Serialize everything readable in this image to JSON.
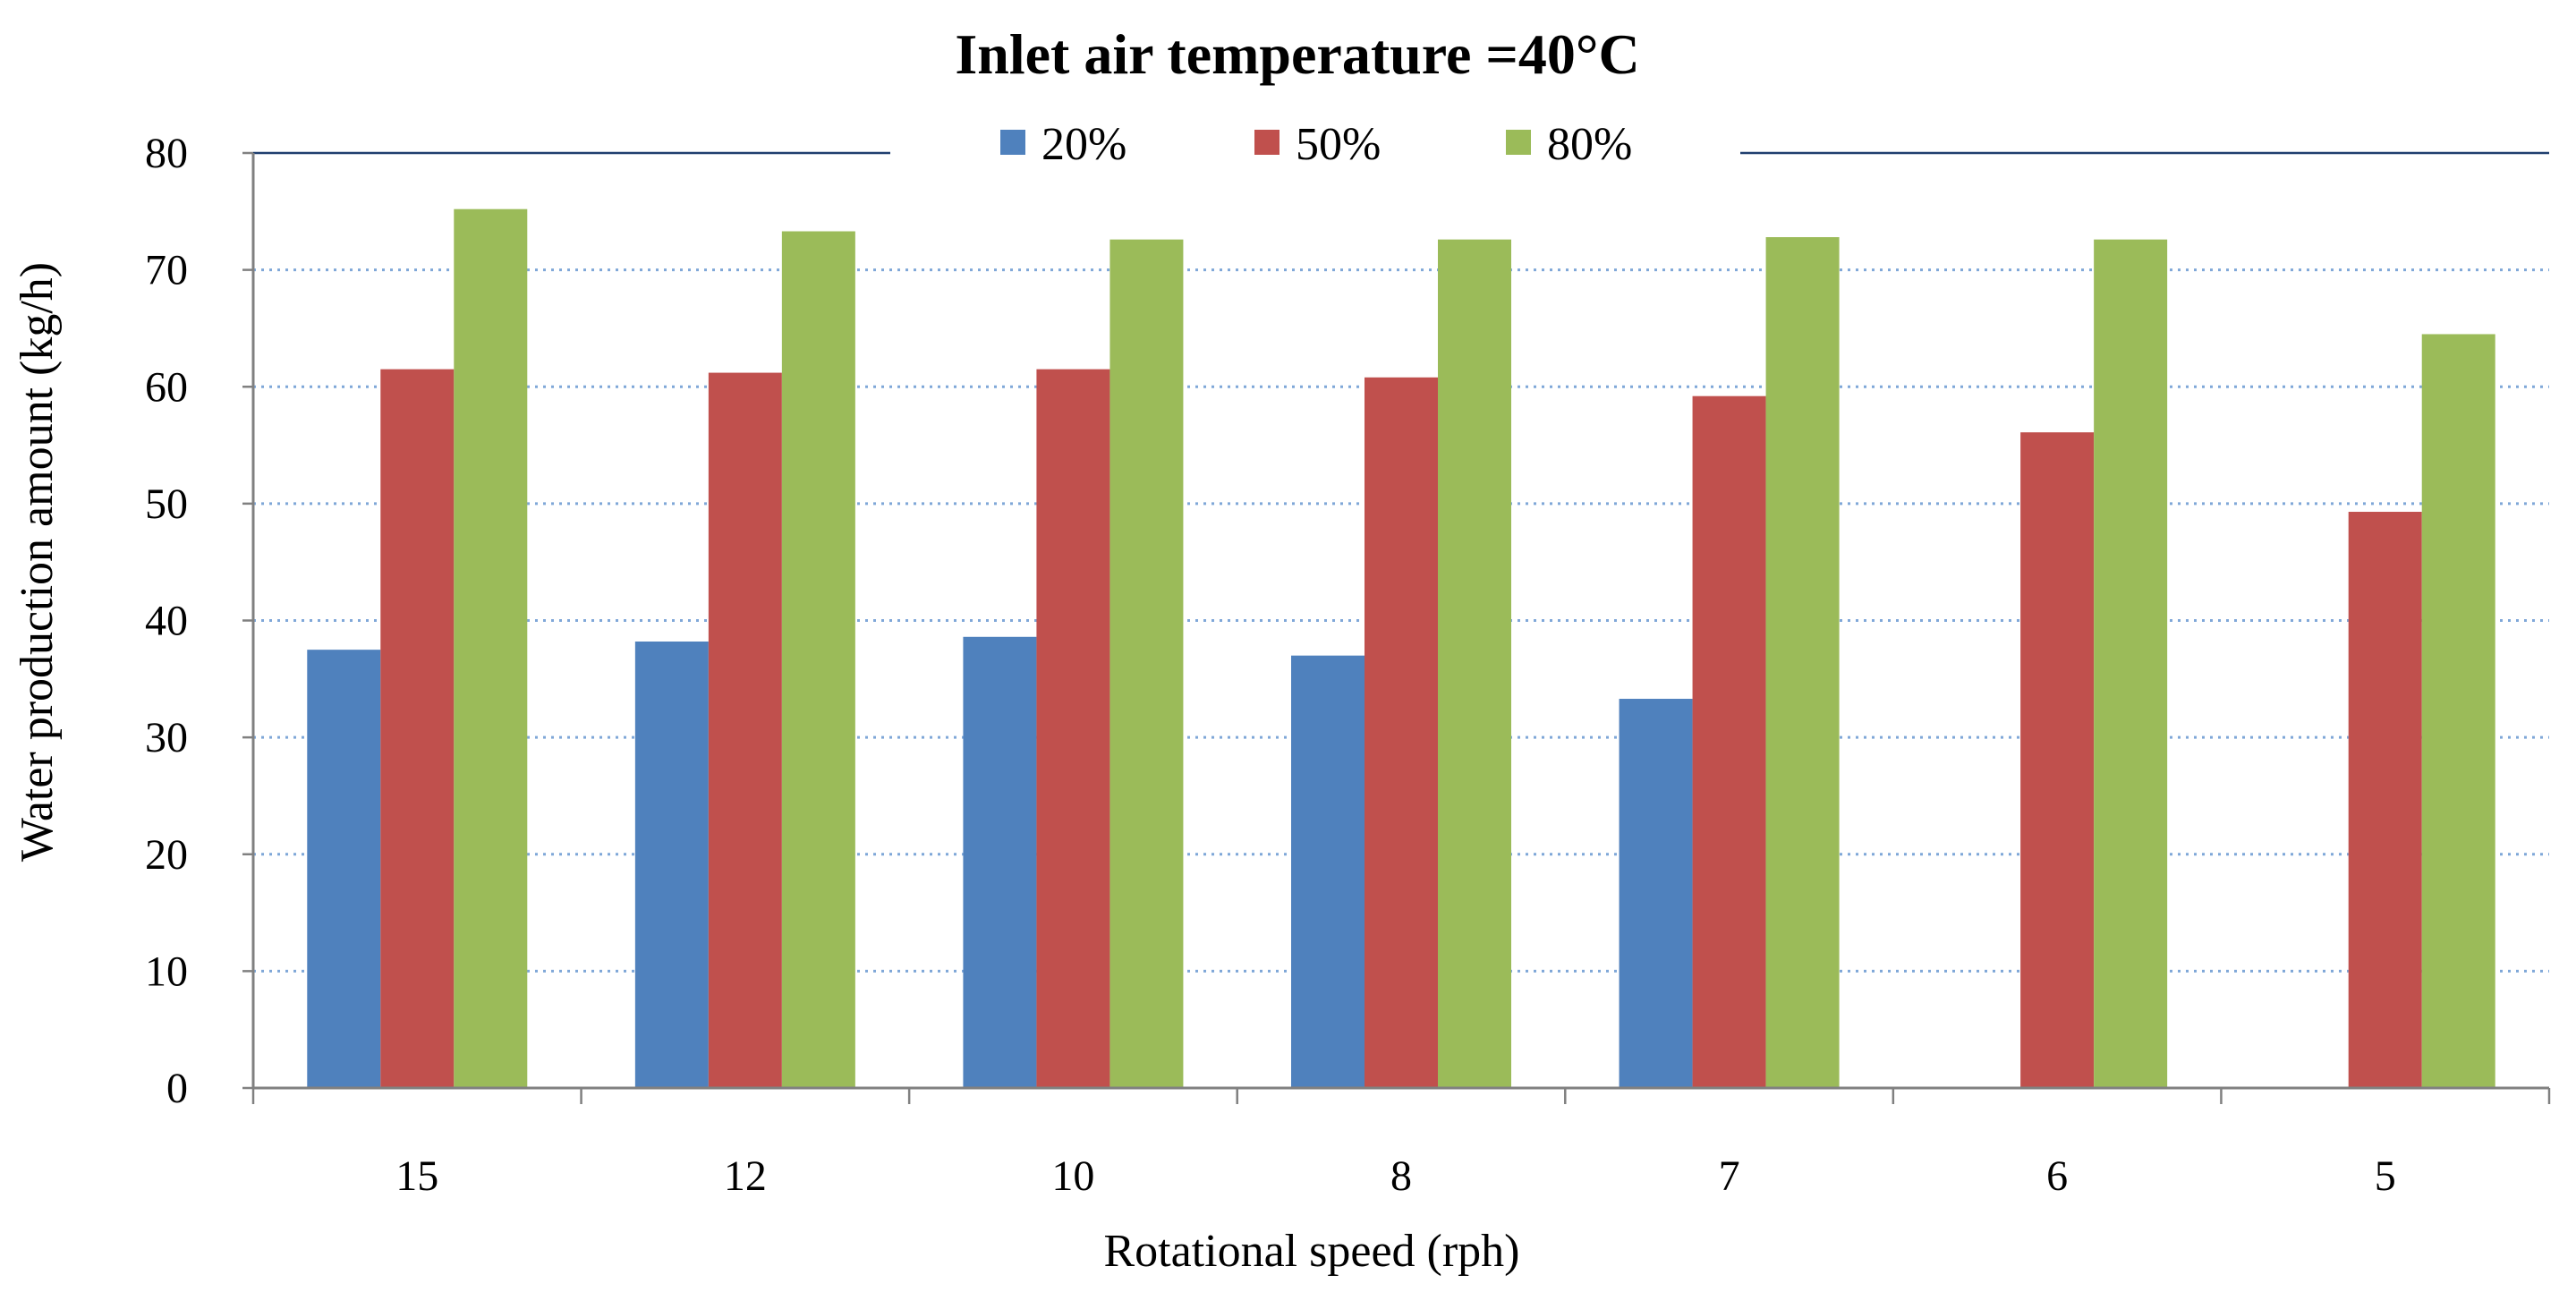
{
  "chart_data": {
    "type": "bar",
    "title": "Inlet air temperature =40°C",
    "xlabel": "Rotational speed (rph)",
    "ylabel": "Water production amount  (kg/h)",
    "categories": [
      "15",
      "12",
      "10",
      "8",
      "7",
      "6",
      "5"
    ],
    "series": [
      {
        "name": "20%",
        "color": "#4F81BD",
        "values": [
          37.5,
          38.2,
          38.6,
          37.0,
          33.3,
          null,
          null
        ]
      },
      {
        "name": "50%",
        "color": "#C0504D",
        "values": [
          61.5,
          61.2,
          61.5,
          60.8,
          59.2,
          56.1,
          49.3
        ]
      },
      {
        "name": "80%",
        "color": "#9BBB59",
        "values": [
          75.2,
          73.3,
          72.6,
          72.6,
          72.8,
          72.6,
          64.5
        ]
      }
    ],
    "ylim": [
      0,
      80
    ],
    "yticks": [
      0,
      10,
      20,
      30,
      40,
      50,
      60,
      70,
      80
    ],
    "grid": true,
    "legend": "top-center"
  }
}
